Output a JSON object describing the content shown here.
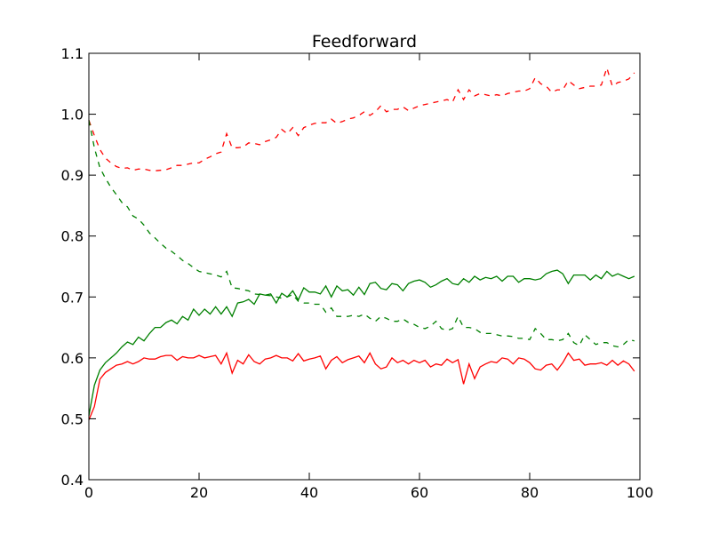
{
  "chart_data": {
    "type": "line",
    "title": "Feedforward",
    "xlabel": "",
    "ylabel": "",
    "xlim": [
      0,
      100
    ],
    "ylim": [
      0.4,
      1.1
    ],
    "xticks": [
      0,
      20,
      40,
      60,
      80,
      100
    ],
    "yticks": [
      0.4,
      0.5,
      0.6,
      0.7,
      0.8,
      0.9,
      1.0,
      1.1
    ],
    "xtick_labels": [
      "0",
      "20",
      "40",
      "60",
      "80",
      "100"
    ],
    "ytick_labels": [
      "0.4",
      "0.5",
      "0.6",
      "0.7",
      "0.8",
      "0.9",
      "1.0",
      "1.1"
    ],
    "grid": false,
    "legend": "none",
    "x": [
      0,
      1,
      2,
      3,
      4,
      5,
      6,
      7,
      8,
      9,
      10,
      11,
      12,
      13,
      14,
      15,
      16,
      17,
      18,
      19,
      20,
      21,
      22,
      23,
      24,
      25,
      26,
      27,
      28,
      29,
      30,
      31,
      32,
      33,
      34,
      35,
      36,
      37,
      38,
      39,
      40,
      41,
      42,
      43,
      44,
      45,
      46,
      47,
      48,
      49,
      50,
      51,
      52,
      53,
      54,
      55,
      56,
      57,
      58,
      59,
      60,
      61,
      62,
      63,
      64,
      65,
      66,
      67,
      68,
      69,
      70,
      71,
      72,
      73,
      74,
      75,
      76,
      77,
      78,
      79,
      80,
      81,
      82,
      83,
      84,
      85,
      86,
      87,
      88,
      89,
      90,
      91,
      92,
      93,
      94,
      95,
      96,
      97,
      98,
      99
    ],
    "series": [
      {
        "color": "#ff0000",
        "dash": "dashed",
        "values": [
          0.99,
          0.965,
          0.942,
          0.928,
          0.92,
          0.914,
          0.911,
          0.912,
          0.908,
          0.91,
          0.91,
          0.908,
          0.907,
          0.908,
          0.909,
          0.912,
          0.916,
          0.916,
          0.918,
          0.92,
          0.92,
          0.926,
          0.93,
          0.935,
          0.938,
          0.968,
          0.945,
          0.945,
          0.946,
          0.953,
          0.952,
          0.95,
          0.955,
          0.958,
          0.962,
          0.975,
          0.968,
          0.978,
          0.965,
          0.978,
          0.982,
          0.985,
          0.986,
          0.986,
          0.992,
          0.985,
          0.988,
          0.992,
          0.994,
          0.998,
          1.004,
          0.998,
          1.004,
          1.014,
          1.004,
          1.008,
          1.008,
          1.012,
          1.006,
          1.01,
          1.014,
          1.016,
          1.018,
          1.02,
          1.022,
          1.024,
          1.02,
          1.04,
          1.024,
          1.04,
          1.03,
          1.034,
          1.032,
          1.03,
          1.032,
          1.03,
          1.034,
          1.036,
          1.038,
          1.038,
          1.042,
          1.06,
          1.05,
          1.046,
          1.036,
          1.04,
          1.04,
          1.055,
          1.048,
          1.042,
          1.044,
          1.046,
          1.046,
          1.048,
          1.076,
          1.046,
          1.052,
          1.054,
          1.058,
          1.068
        ]
      },
      {
        "color": "#008000",
        "dash": "dashed",
        "values": [
          0.99,
          0.945,
          0.912,
          0.895,
          0.88,
          0.868,
          0.855,
          0.848,
          0.833,
          0.828,
          0.818,
          0.805,
          0.797,
          0.788,
          0.78,
          0.775,
          0.768,
          0.76,
          0.755,
          0.748,
          0.742,
          0.74,
          0.738,
          0.736,
          0.733,
          0.742,
          0.715,
          0.714,
          0.712,
          0.71,
          0.705,
          0.704,
          0.703,
          0.702,
          0.7,
          0.698,
          0.7,
          0.704,
          0.693,
          0.69,
          0.69,
          0.688,
          0.688,
          0.675,
          0.682,
          0.668,
          0.668,
          0.668,
          0.67,
          0.668,
          0.672,
          0.665,
          0.66,
          0.668,
          0.665,
          0.66,
          0.66,
          0.664,
          0.658,
          0.655,
          0.65,
          0.648,
          0.652,
          0.66,
          0.648,
          0.645,
          0.648,
          0.668,
          0.65,
          0.65,
          0.648,
          0.642,
          0.64,
          0.64,
          0.638,
          0.636,
          0.636,
          0.635,
          0.632,
          0.632,
          0.63,
          0.648,
          0.64,
          0.63,
          0.63,
          0.628,
          0.63,
          0.64,
          0.625,
          0.62,
          0.638,
          0.63,
          0.622,
          0.625,
          0.625,
          0.62,
          0.618,
          0.622,
          0.63,
          0.628
        ]
      },
      {
        "color": "#008000",
        "dash": "solid",
        "values": [
          0.505,
          0.555,
          0.58,
          0.592,
          0.6,
          0.608,
          0.618,
          0.626,
          0.622,
          0.634,
          0.628,
          0.64,
          0.65,
          0.65,
          0.658,
          0.662,
          0.656,
          0.668,
          0.662,
          0.68,
          0.67,
          0.68,
          0.672,
          0.684,
          0.672,
          0.684,
          0.668,
          0.69,
          0.692,
          0.696,
          0.688,
          0.705,
          0.703,
          0.705,
          0.69,
          0.706,
          0.7,
          0.71,
          0.695,
          0.715,
          0.708,
          0.708,
          0.705,
          0.718,
          0.7,
          0.718,
          0.71,
          0.712,
          0.703,
          0.716,
          0.704,
          0.722,
          0.724,
          0.714,
          0.712,
          0.722,
          0.72,
          0.71,
          0.722,
          0.726,
          0.728,
          0.724,
          0.716,
          0.72,
          0.726,
          0.73,
          0.722,
          0.72,
          0.73,
          0.724,
          0.734,
          0.728,
          0.732,
          0.73,
          0.734,
          0.726,
          0.734,
          0.734,
          0.724,
          0.73,
          0.73,
          0.728,
          0.73,
          0.738,
          0.742,
          0.744,
          0.738,
          0.722,
          0.736,
          0.736,
          0.736,
          0.728,
          0.736,
          0.73,
          0.742,
          0.734,
          0.738,
          0.734,
          0.73,
          0.734
        ]
      },
      {
        "color": "#ff0000",
        "dash": "solid",
        "values": [
          0.498,
          0.52,
          0.565,
          0.576,
          0.582,
          0.588,
          0.59,
          0.594,
          0.59,
          0.594,
          0.6,
          0.598,
          0.598,
          0.602,
          0.604,
          0.604,
          0.596,
          0.602,
          0.6,
          0.6,
          0.604,
          0.6,
          0.602,
          0.604,
          0.59,
          0.608,
          0.575,
          0.596,
          0.59,
          0.605,
          0.594,
          0.59,
          0.598,
          0.6,
          0.604,
          0.6,
          0.6,
          0.595,
          0.607,
          0.595,
          0.598,
          0.6,
          0.603,
          0.582,
          0.596,
          0.602,
          0.592,
          0.597,
          0.6,
          0.603,
          0.592,
          0.608,
          0.59,
          0.582,
          0.585,
          0.6,
          0.592,
          0.596,
          0.59,
          0.596,
          0.592,
          0.596,
          0.585,
          0.59,
          0.588,
          0.598,
          0.592,
          0.597,
          0.557,
          0.59,
          0.566,
          0.585,
          0.59,
          0.594,
          0.592,
          0.6,
          0.598,
          0.59,
          0.6,
          0.598,
          0.592,
          0.582,
          0.58,
          0.588,
          0.59,
          0.58,
          0.592,
          0.608,
          0.596,
          0.598,
          0.588,
          0.59,
          0.59,
          0.592,
          0.588,
          0.596,
          0.588,
          0.595,
          0.59,
          0.578
        ]
      }
    ]
  }
}
